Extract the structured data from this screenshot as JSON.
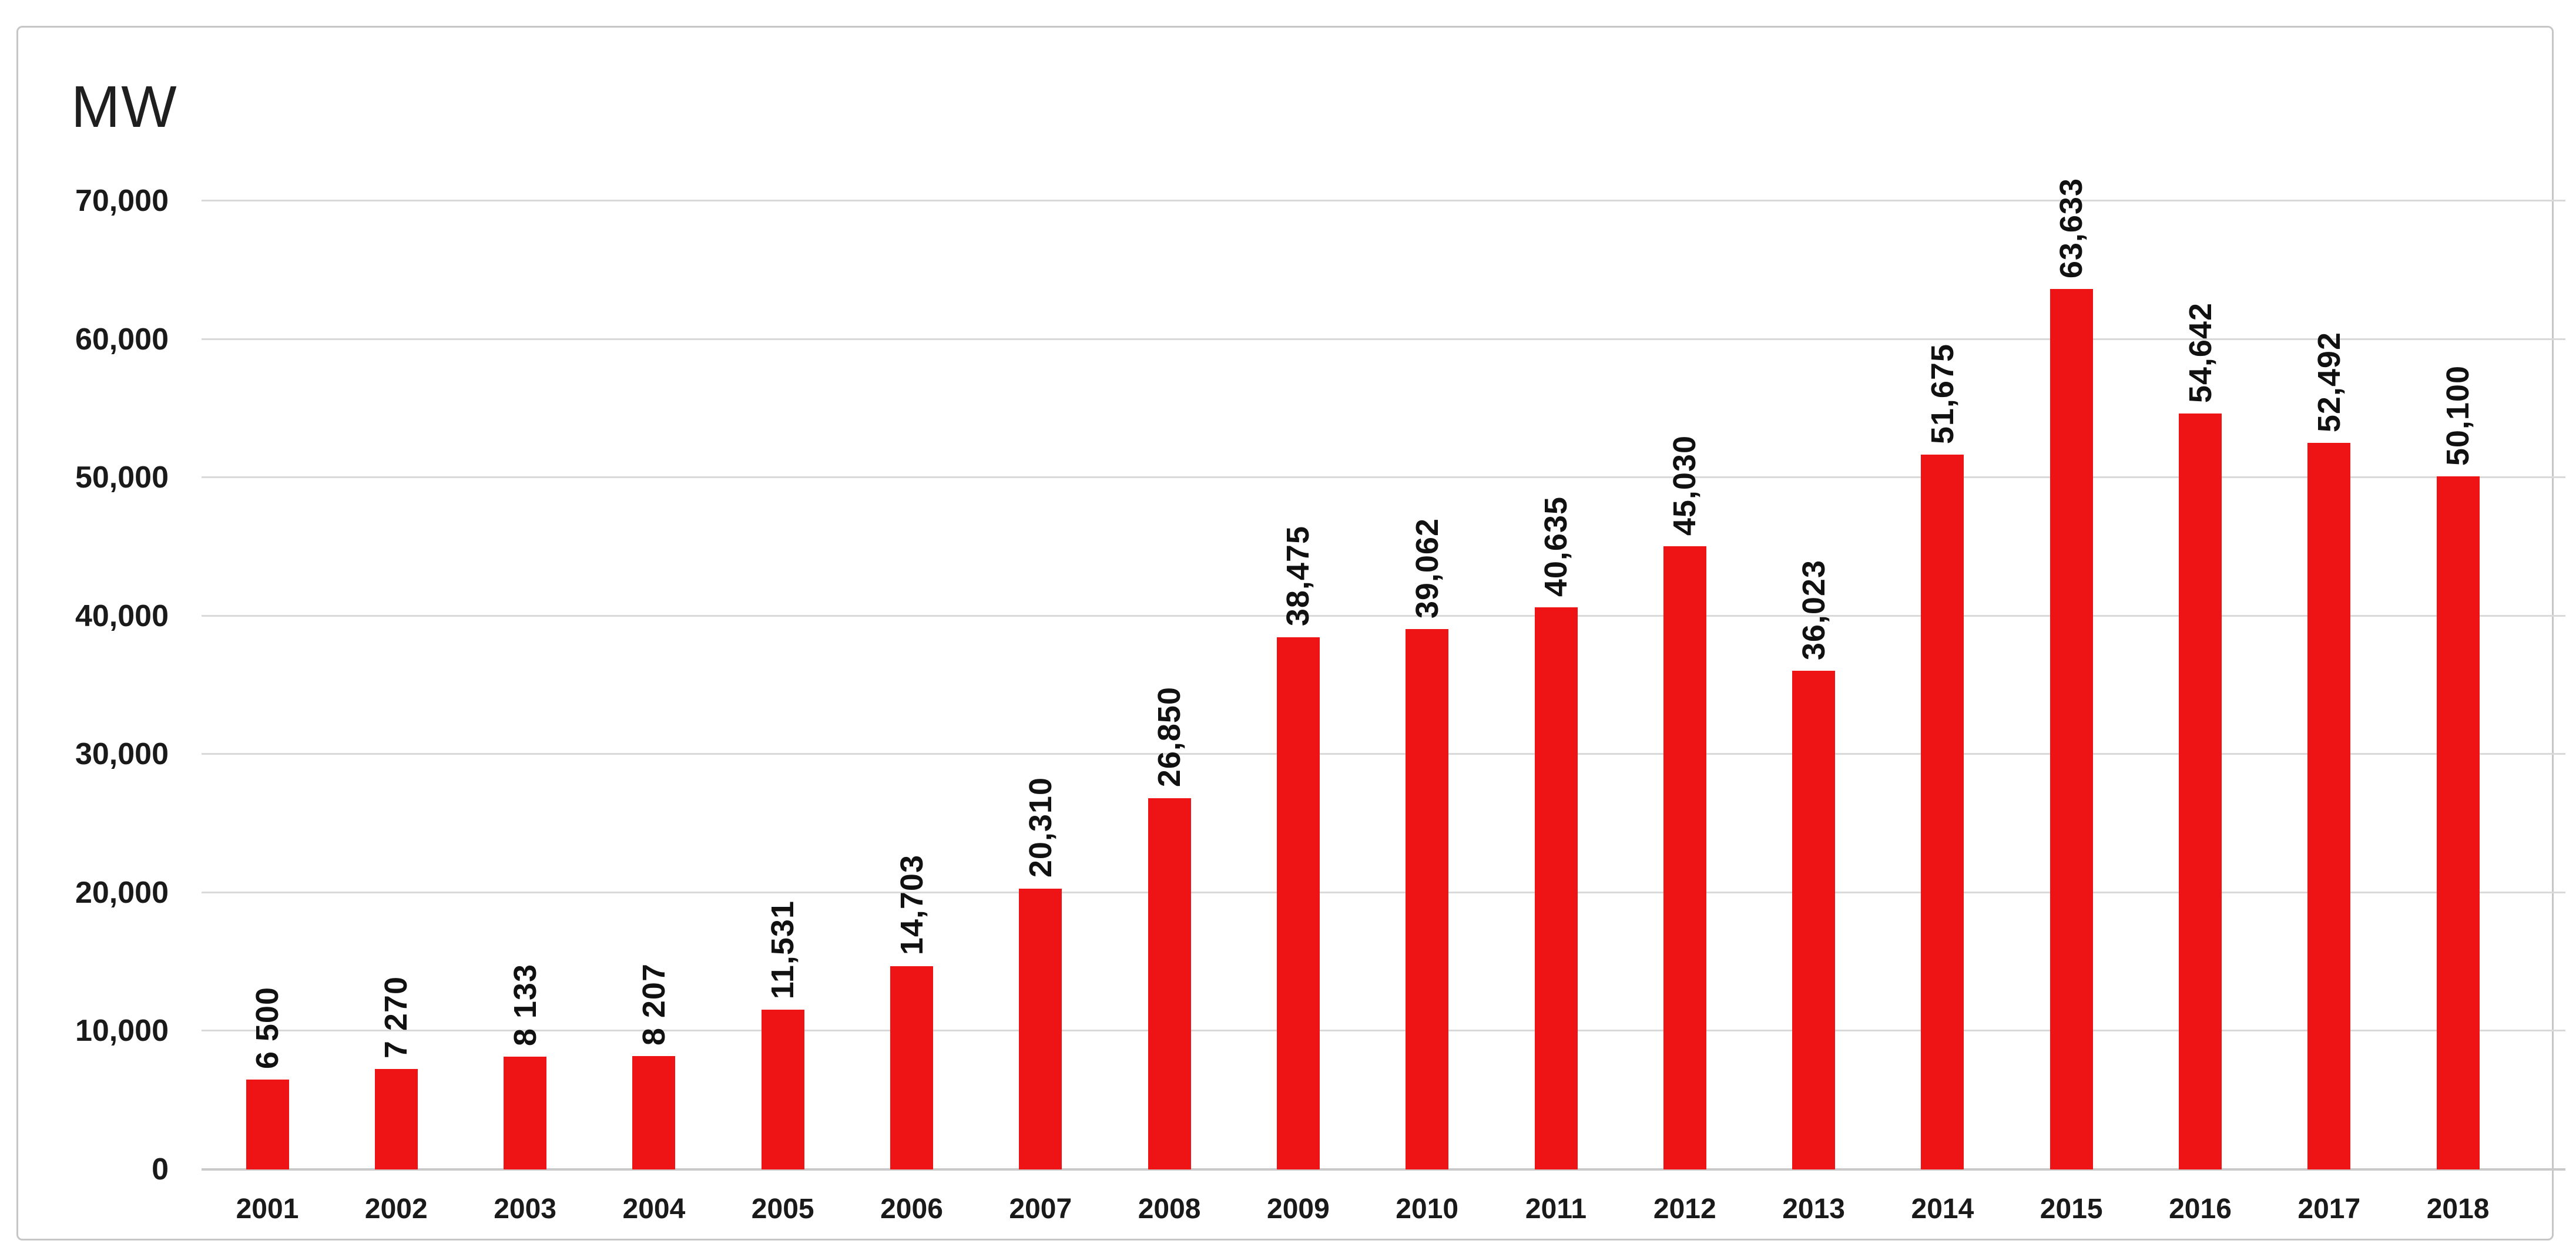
{
  "chart_data": {
    "type": "bar",
    "title": "",
    "unit_label": "MW",
    "xlabel": "",
    "ylabel": "MW",
    "categories": [
      "2001",
      "2002",
      "2003",
      "2004",
      "2005",
      "2006",
      "2007",
      "2008",
      "2009",
      "2010",
      "2011",
      "2012",
      "2013",
      "2014",
      "2015",
      "2016",
      "2017",
      "2018"
    ],
    "series": [
      {
        "name": "MW",
        "values": [
          6500,
          7270,
          8133,
          8207,
          11531,
          14703,
          20310,
          26850,
          38475,
          39062,
          40635,
          45030,
          36023,
          51675,
          63633,
          54642,
          52492,
          50100
        ]
      }
    ],
    "value_labels": [
      "6 500",
      "7 270",
      "8 133",
      "8 207",
      "11,531",
      "14,703",
      "20,310",
      "26,850",
      "38,475",
      "39,062",
      "40,635",
      "45,030",
      "36,023",
      "51,675",
      "63,633",
      "54,642",
      "52,492",
      "50,100"
    ],
    "y_ticks": [
      {
        "value": 0,
        "label": "0"
      },
      {
        "value": 10000,
        "label": "10,000"
      },
      {
        "value": 20000,
        "label": "20,000"
      },
      {
        "value": 30000,
        "label": "30,000"
      },
      {
        "value": 40000,
        "label": "40,000"
      },
      {
        "value": 50000,
        "label": "50,000"
      },
      {
        "value": 60000,
        "label": "60,000"
      },
      {
        "value": 70000,
        "label": "70,000"
      }
    ],
    "ylim": [
      0,
      70000
    ],
    "grid": true,
    "legend": "none",
    "colors": {
      "bar": "#ee1416",
      "gridline": "#d9d9d9",
      "baseline": "#c9c9c9",
      "frame_border": "#c6c6c6",
      "text": "#1a1a1a",
      "background": "#ffffff"
    }
  }
}
